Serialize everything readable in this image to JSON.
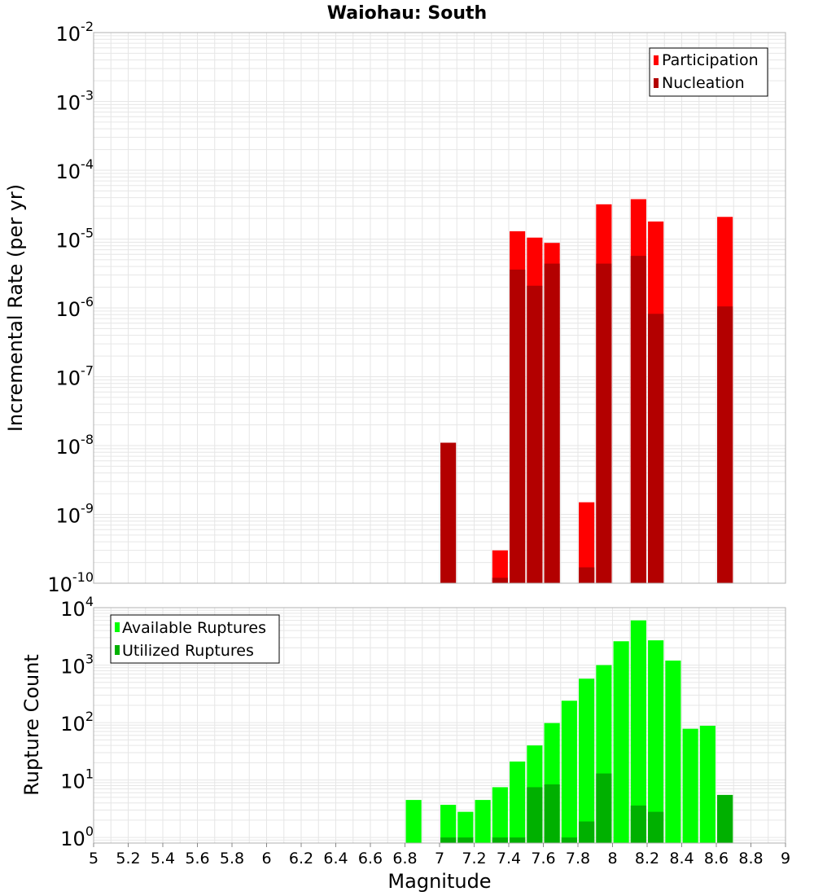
{
  "chart_data": [
    {
      "type": "bar",
      "title": "Waiohau: South",
      "ylabel": "Incremental Rate (per yr)",
      "xlabel": "",
      "yscale": "log",
      "ylim": [
        1e-10,
        0.01
      ],
      "xlim": [
        5,
        9
      ],
      "grid": true,
      "legend_position": "top-right",
      "bar_width": 0.09,
      "series": [
        {
          "name": "Participation",
          "color": "#ff0000",
          "x": [
            7.35,
            7.45,
            7.55,
            7.65,
            7.85,
            7.95,
            8.15,
            8.25,
            8.65
          ],
          "values": [
            3e-10,
            1.3e-05,
            1.05e-05,
            8.8e-06,
            1.5e-09,
            3.2e-05,
            3.8e-05,
            1.8e-05,
            2.1e-05
          ]
        },
        {
          "name": "Nucleation",
          "color": "#b30000",
          "x": [
            7.05,
            7.35,
            7.45,
            7.55,
            7.65,
            7.85,
            7.95,
            8.15,
            8.25,
            8.65
          ],
          "values": [
            1.1e-08,
            1.2e-10,
            3.6e-06,
            2.1e-06,
            4.4e-06,
            1.7e-10,
            4.4e-06,
            5.7e-06,
            8.2e-07,
            1.05e-06
          ]
        }
      ]
    },
    {
      "type": "bar",
      "title": "",
      "ylabel": "Rupture Count",
      "xlabel": "Magnitude",
      "yscale": "log",
      "ylim": [
        0.8,
        10000
      ],
      "xlim": [
        5,
        9
      ],
      "grid": true,
      "legend_position": "top-left",
      "bar_width": 0.09,
      "xticks": [
        "5",
        "5.2",
        "5.4",
        "5.6",
        "5.8",
        "6",
        "6.2",
        "6.4",
        "6.6",
        "6.8",
        "7",
        "7.2",
        "7.4",
        "7.6",
        "7.8",
        "8",
        "8.2",
        "8.4",
        "8.6",
        "8.8",
        "9"
      ],
      "series": [
        {
          "name": "Available Ruptures",
          "color": "#00ff00",
          "x": [
            6.85,
            7.05,
            7.15,
            7.25,
            7.35,
            7.45,
            7.55,
            7.65,
            7.75,
            7.85,
            7.95,
            8.05,
            8.15,
            8.25,
            8.35,
            8.45,
            8.55,
            8.65
          ],
          "values": [
            4.5,
            3.7,
            2.8,
            4.5,
            7.5,
            21,
            40,
            98,
            240,
            580,
            1000,
            2600,
            6000,
            2700,
            1200,
            78,
            88,
            5.5
          ]
        },
        {
          "name": "Utilized Ruptures",
          "color": "#00b000",
          "x": [
            7.05,
            7.15,
            7.35,
            7.45,
            7.55,
            7.65,
            7.75,
            7.85,
            7.95,
            8.15,
            8.25,
            8.65
          ],
          "values": [
            1,
            1,
            1,
            1,
            7.5,
            8.4,
            1,
            1.9,
            13,
            3.6,
            2.8,
            5.5
          ]
        }
      ]
    }
  ]
}
